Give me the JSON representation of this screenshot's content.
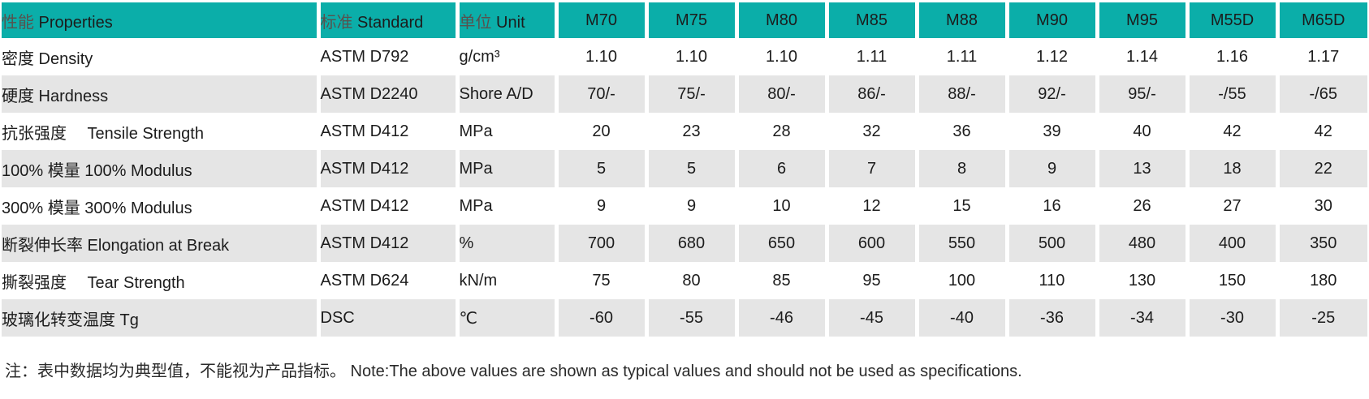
{
  "page": {
    "note": "注：表中数据均为典型值，不能视为产品指标。 Note:The above values are shown as typical values and should not be used as specifications."
  },
  "colors": {
    "header_bg": "#0BAEA9",
    "stripe_bg": "#E5E5E5",
    "header_text_cn": "#57524E",
    "header_text_en": "#161616",
    "body_text": "#1C1C1C"
  },
  "table": {
    "label_columns": [
      {
        "key": "property",
        "label_cn": "性能",
        "label_en": "Properties"
      },
      {
        "key": "standard",
        "label_cn": "标准",
        "label_en": "Standard"
      },
      {
        "key": "unit",
        "label_cn": "单位",
        "label_en": "Unit"
      }
    ],
    "grades": [
      "M70",
      "M75",
      "M80",
      "M85",
      "M88",
      "M90",
      "M95",
      "M55D",
      "M65D"
    ],
    "rows": [
      {
        "property": "密度 Density",
        "standard": "ASTM D792",
        "unit": "g/cm³",
        "values": [
          "1.10",
          "1.10",
          "1.10",
          "1.11",
          "1.11",
          "1.12",
          "1.14",
          "1.16",
          "1.17"
        ]
      },
      {
        "property": "硬度 Hardness",
        "standard": "ASTM D2240",
        "unit": "Shore A/D",
        "values": [
          "70/-",
          "75/-",
          "80/-",
          "86/-",
          "88/-",
          "92/-",
          "95/-",
          "-/55",
          "-/65"
        ]
      },
      {
        "property": "抗张强度　 Tensile Strength",
        "standard": "ASTM D412",
        "unit": "MPa",
        "values": [
          "20",
          "23",
          "28",
          "32",
          "36",
          "39",
          "40",
          "42",
          "42"
        ]
      },
      {
        "property": "100% 模量 100% Modulus",
        "standard": "ASTM D412",
        "unit": "MPa",
        "values": [
          "5",
          "5",
          "6",
          "7",
          "8",
          "9",
          "13",
          "18",
          "22"
        ]
      },
      {
        "property": "300% 模量 300% Modulus",
        "standard": "ASTM D412",
        "unit": "MPa",
        "values": [
          "9",
          "9",
          "10",
          "12",
          "15",
          "16",
          "26",
          "27",
          "30"
        ]
      },
      {
        "property": "断裂伸长率 Elongation at Break",
        "standard": "ASTM D412",
        "unit": "%",
        "values": [
          "700",
          "680",
          "650",
          "600",
          "550",
          "500",
          "480",
          "400",
          "350"
        ]
      },
      {
        "property": "撕裂强度　 Tear Strength",
        "standard": "ASTM D624",
        "unit": "kN/m",
        "values": [
          "75",
          "80",
          "85",
          "95",
          "100",
          "110",
          "130",
          "150",
          "180"
        ]
      },
      {
        "property": "玻璃化转变温度 Tg",
        "standard": "DSC",
        "unit": "℃",
        "values": [
          "-60",
          "-55",
          "-46",
          "-45",
          "-40",
          "-36",
          "-34",
          "-30",
          "-25"
        ]
      }
    ]
  }
}
